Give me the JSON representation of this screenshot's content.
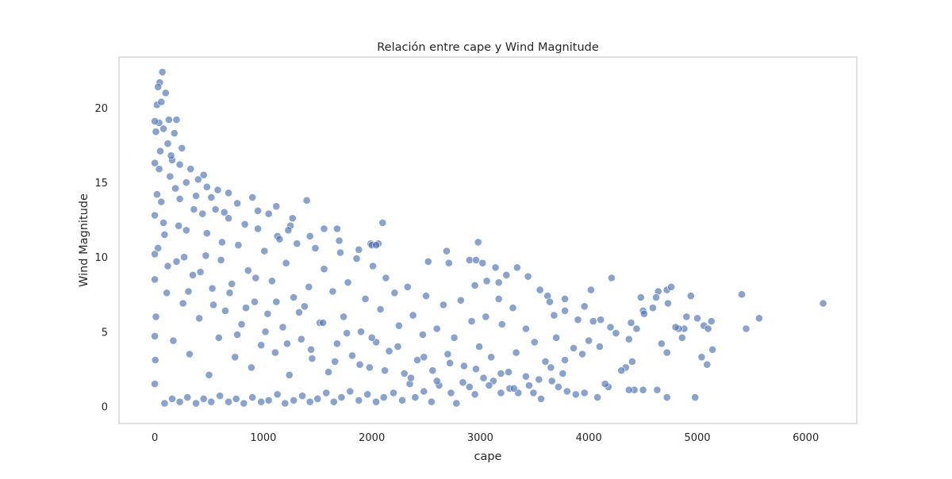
{
  "chart_data": {
    "type": "scatter",
    "title": "Relación entre cape y Wind Magnitude",
    "xlabel": "cape",
    "ylabel": "Wind Magnitude",
    "xlim": [
      -330,
      6470
    ],
    "ylim": [
      -1.15,
      23.4
    ],
    "xticks": [
      0,
      1000,
      2000,
      3000,
      4000,
      5000,
      6000
    ],
    "yticks": [
      0,
      5,
      10,
      15,
      20
    ],
    "grid": false,
    "legend": "none",
    "marker_color": "#4c72b0",
    "marker_edge_color": "#ffffff",
    "marker_alpha": 0.65,
    "series": [
      {
        "points": [
          [
            70,
            22.4
          ],
          [
            45,
            21.7
          ],
          [
            30,
            21.4
          ],
          [
            100,
            21.0
          ],
          [
            20,
            20.2
          ],
          [
            60,
            20.4
          ],
          [
            130,
            19.2
          ],
          [
            200,
            19.2
          ],
          [
            40,
            19.0
          ],
          [
            80,
            18.6
          ],
          [
            180,
            18.3
          ],
          [
            250,
            17.3
          ],
          [
            120,
            17.6
          ],
          [
            160,
            16.5
          ],
          [
            230,
            16.2
          ],
          [
            330,
            15.9
          ],
          [
            450,
            15.5
          ],
          [
            290,
            15.0
          ],
          [
            400,
            15.2
          ],
          [
            480,
            14.7
          ],
          [
            580,
            14.5
          ],
          [
            680,
            14.3
          ],
          [
            520,
            14.0
          ],
          [
            900,
            14.0
          ],
          [
            760,
            13.6
          ],
          [
            1120,
            13.4
          ],
          [
            1400,
            13.8
          ],
          [
            640,
            13.0
          ],
          [
            950,
            13.1
          ],
          [
            1050,
            12.9
          ],
          [
            1270,
            12.6
          ],
          [
            1250,
            12.1
          ],
          [
            1230,
            11.8
          ],
          [
            1560,
            11.9
          ],
          [
            1680,
            11.9
          ],
          [
            2100,
            12.3
          ],
          [
            1130,
            11.4
          ],
          [
            1430,
            11.4
          ],
          [
            1700,
            11.1
          ],
          [
            2060,
            10.9
          ],
          [
            1990,
            10.9
          ],
          [
            2000,
            10.8
          ],
          [
            1880,
            10.5
          ],
          [
            2040,
            10.8
          ],
          [
            2690,
            10.4
          ],
          [
            2980,
            11.0
          ],
          [
            2520,
            9.7
          ],
          [
            2710,
            9.6
          ],
          [
            2900,
            9.8
          ],
          [
            2960,
            9.8
          ],
          [
            3020,
            9.6
          ],
          [
            3140,
            9.3
          ],
          [
            3340,
            9.3
          ],
          [
            3240,
            8.8
          ],
          [
            3440,
            8.7
          ],
          [
            3060,
            8.4
          ],
          [
            2950,
            8.1
          ],
          [
            3170,
            8.3
          ],
          [
            3550,
            7.8
          ],
          [
            3620,
            7.4
          ],
          [
            3780,
            7.2
          ],
          [
            3640,
            7.0
          ],
          [
            4020,
            7.8
          ],
          [
            4210,
            8.6
          ],
          [
            4480,
            7.3
          ],
          [
            4640,
            7.7
          ],
          [
            4720,
            7.8
          ],
          [
            4760,
            8.0
          ],
          [
            4940,
            7.4
          ],
          [
            5410,
            7.5
          ],
          [
            6160,
            6.9
          ],
          [
            4620,
            7.3
          ],
          [
            4590,
            6.6
          ],
          [
            4500,
            6.4
          ],
          [
            4730,
            6.9
          ],
          [
            4510,
            6.2
          ],
          [
            4900,
            6.0
          ],
          [
            5000,
            5.9
          ],
          [
            5570,
            5.9
          ],
          [
            5130,
            5.7
          ],
          [
            5060,
            5.4
          ],
          [
            5100,
            5.2
          ],
          [
            5450,
            5.2
          ],
          [
            4880,
            5.2
          ],
          [
            4830,
            5.2
          ],
          [
            4390,
            5.6
          ],
          [
            4800,
            5.3
          ],
          [
            4860,
            4.6
          ],
          [
            4440,
            5.2
          ],
          [
            4110,
            5.8
          ],
          [
            4200,
            5.3
          ],
          [
            4250,
            4.9
          ],
          [
            4370,
            4.5
          ],
          [
            4670,
            4.2
          ],
          [
            4720,
            3.6
          ],
          [
            5140,
            3.8
          ],
          [
            5040,
            3.3
          ],
          [
            5090,
            2.8
          ],
          [
            4980,
            0.6
          ],
          [
            4720,
            0.6
          ],
          [
            4630,
            1.1
          ],
          [
            4500,
            1.1
          ],
          [
            4420,
            1.1
          ],
          [
            4370,
            1.1
          ],
          [
            4400,
            3.0
          ],
          [
            4340,
            2.6
          ],
          [
            4300,
            2.4
          ],
          [
            4180,
            1.3
          ],
          [
            4150,
            1.5
          ],
          [
            4080,
            0.6
          ],
          [
            3960,
            0.9
          ],
          [
            3880,
            0.8
          ],
          [
            3800,
            1.0
          ],
          [
            3720,
            1.3
          ],
          [
            3660,
            1.7
          ],
          [
            3560,
            0.5
          ],
          [
            3490,
            0.9
          ],
          [
            3450,
            1.4
          ],
          [
            3350,
            0.9
          ],
          [
            3270,
            1.2
          ],
          [
            3190,
            0.9
          ],
          [
            3120,
            1.7
          ],
          [
            3030,
            1.9
          ],
          [
            2950,
            0.8
          ],
          [
            2900,
            1.3
          ],
          [
            2780,
            0.2
          ],
          [
            2730,
            0.9
          ],
          [
            2620,
            1.4
          ],
          [
            2550,
            0.3
          ],
          [
            2480,
            1.0
          ],
          [
            2400,
            0.6
          ],
          [
            2350,
            1.5
          ],
          [
            2280,
            0.4
          ],
          [
            2200,
            0.9
          ],
          [
            2110,
            0.6
          ],
          [
            2040,
            0.3
          ],
          [
            1960,
            0.8
          ],
          [
            1880,
            0.4
          ],
          [
            1800,
            1.0
          ],
          [
            1720,
            0.6
          ],
          [
            1650,
            0.3
          ],
          [
            1580,
            0.9
          ],
          [
            1500,
            0.5
          ],
          [
            1430,
            0.3
          ],
          [
            1360,
            0.7
          ],
          [
            1280,
            0.4
          ],
          [
            1200,
            0.2
          ],
          [
            1130,
            0.8
          ],
          [
            1050,
            0.4
          ],
          [
            980,
            0.3
          ],
          [
            900,
            0.6
          ],
          [
            820,
            0.2
          ],
          [
            750,
            0.5
          ],
          [
            680,
            0.3
          ],
          [
            600,
            0.7
          ],
          [
            520,
            0.3
          ],
          [
            450,
            0.5
          ],
          [
            380,
            0.2
          ],
          [
            300,
            0.6
          ],
          [
            230,
            0.3
          ],
          [
            160,
            0.5
          ],
          [
            90,
            0.2
          ],
          [
            3680,
            6.1
          ],
          [
            3780,
            6.4
          ],
          [
            3900,
            5.8
          ],
          [
            3960,
            6.7
          ],
          [
            4040,
            5.7
          ],
          [
            4100,
            4.0
          ],
          [
            4000,
            4.4
          ],
          [
            3940,
            3.5
          ],
          [
            3860,
            3.9
          ],
          [
            3780,
            3.1
          ],
          [
            3700,
            4.6
          ],
          [
            3600,
            3.0
          ],
          [
            3500,
            4.3
          ],
          [
            3420,
            5.2
          ],
          [
            3330,
            3.6
          ],
          [
            3300,
            6.6
          ],
          [
            3260,
            2.3
          ],
          [
            3200,
            5.5
          ],
          [
            3170,
            7.2
          ],
          [
            3100,
            3.3
          ],
          [
            3050,
            6.0
          ],
          [
            2990,
            4.0
          ],
          [
            2920,
            5.7
          ],
          [
            2850,
            2.7
          ],
          [
            2820,
            7.1
          ],
          [
            2760,
            4.6
          ],
          [
            2700,
            3.5
          ],
          [
            2660,
            6.8
          ],
          [
            2600,
            5.2
          ],
          [
            2560,
            2.4
          ],
          [
            2500,
            7.4
          ],
          [
            2470,
            4.8
          ],
          [
            2420,
            3.1
          ],
          [
            2380,
            6.1
          ],
          [
            2330,
            8.0
          ],
          [
            2300,
            2.2
          ],
          [
            2250,
            5.4
          ],
          [
            2210,
            7.6
          ],
          [
            2160,
            3.7
          ],
          [
            2130,
            8.6
          ],
          [
            2080,
            6.5
          ],
          [
            2040,
            4.3
          ],
          [
            2010,
            9.4
          ],
          [
            1980,
            2.6
          ],
          [
            1940,
            7.2
          ],
          [
            1900,
            5.0
          ],
          [
            1860,
            9.9
          ],
          [
            1820,
            3.4
          ],
          [
            1780,
            8.3
          ],
          [
            1740,
            6.0
          ],
          [
            1710,
            10.3
          ],
          [
            1680,
            4.2
          ],
          [
            1640,
            7.7
          ],
          [
            1600,
            2.3
          ],
          [
            1560,
            9.2
          ],
          [
            1520,
            5.6
          ],
          [
            1480,
            10.6
          ],
          [
            1450,
            3.2
          ],
          [
            1420,
            8.0
          ],
          [
            1380,
            6.7
          ],
          [
            1350,
            4.5
          ],
          [
            1310,
            10.9
          ],
          [
            1280,
            7.3
          ],
          [
            1240,
            2.1
          ],
          [
            1210,
            9.6
          ],
          [
            1180,
            5.3
          ],
          [
            1150,
            11.2
          ],
          [
            1110,
            3.6
          ],
          [
            1080,
            8.4
          ],
          [
            1040,
            6.2
          ],
          [
            1010,
            10.4
          ],
          [
            980,
            4.1
          ],
          [
            950,
            11.9
          ],
          [
            920,
            7.0
          ],
          [
            890,
            2.6
          ],
          [
            860,
            9.1
          ],
          [
            830,
            12.2
          ],
          [
            800,
            5.5
          ],
          [
            770,
            10.8
          ],
          [
            740,
            3.3
          ],
          [
            710,
            8.2
          ],
          [
            680,
            12.6
          ],
          [
            650,
            6.4
          ],
          [
            620,
            11.0
          ],
          [
            590,
            4.6
          ],
          [
            560,
            13.2
          ],
          [
            530,
            7.9
          ],
          [
            500,
            2.1
          ],
          [
            470,
            10.1
          ],
          [
            440,
            12.9
          ],
          [
            410,
            5.9
          ],
          [
            380,
            14.1
          ],
          [
            350,
            8.8
          ],
          [
            320,
            3.5
          ],
          [
            290,
            11.8
          ],
          [
            260,
            6.9
          ],
          [
            230,
            13.9
          ],
          [
            200,
            9.7
          ],
          [
            170,
            4.4
          ],
          [
            140,
            15.4
          ],
          [
            110,
            7.6
          ],
          [
            80,
            12.3
          ],
          [
            50,
            17.1
          ],
          [
            30,
            10.6
          ],
          [
            20,
            14.2
          ],
          [
            10,
            6.0
          ],
          [
            5,
            3.1
          ],
          [
            0,
            8.5
          ],
          [
            0,
            12.8
          ],
          [
            0,
            16.3
          ],
          [
            0,
            1.5
          ],
          [
            0,
            4.7
          ],
          [
            0,
            19.1
          ],
          [
            0,
            10.2
          ],
          [
            10,
            18.4
          ],
          [
            40,
            15.9
          ],
          [
            60,
            13.7
          ],
          [
            90,
            11.5
          ],
          [
            120,
            9.4
          ],
          [
            150,
            16.8
          ],
          [
            190,
            14.6
          ],
          [
            220,
            12.1
          ],
          [
            270,
            10.0
          ],
          [
            310,
            7.7
          ],
          [
            360,
            13.2
          ],
          [
            420,
            9.0
          ],
          [
            480,
            11.6
          ],
          [
            540,
            6.8
          ],
          [
            610,
            9.8
          ],
          [
            690,
            7.6
          ],
          [
            760,
            4.8
          ],
          [
            840,
            6.6
          ],
          [
            930,
            8.6
          ],
          [
            1020,
            5.0
          ],
          [
            1120,
            7.0
          ],
          [
            1220,
            4.2
          ],
          [
            1330,
            6.3
          ],
          [
            1440,
            3.8
          ],
          [
            1550,
            5.6
          ],
          [
            1660,
            3.0
          ],
          [
            1770,
            4.9
          ],
          [
            1890,
            2.8
          ],
          [
            2000,
            4.6
          ],
          [
            2120,
            2.4
          ],
          [
            2240,
            4.0
          ],
          [
            2360,
            1.9
          ],
          [
            2480,
            3.3
          ],
          [
            2600,
            1.7
          ],
          [
            2720,
            2.9
          ],
          [
            2840,
            1.6
          ],
          [
            2960,
            2.5
          ],
          [
            3080,
            1.4
          ],
          [
            3190,
            2.2
          ],
          [
            3310,
            1.2
          ],
          [
            3420,
            2.0
          ],
          [
            3540,
            1.8
          ],
          [
            3650,
            2.6
          ],
          [
            3760,
            2.2
          ]
        ]
      }
    ]
  }
}
